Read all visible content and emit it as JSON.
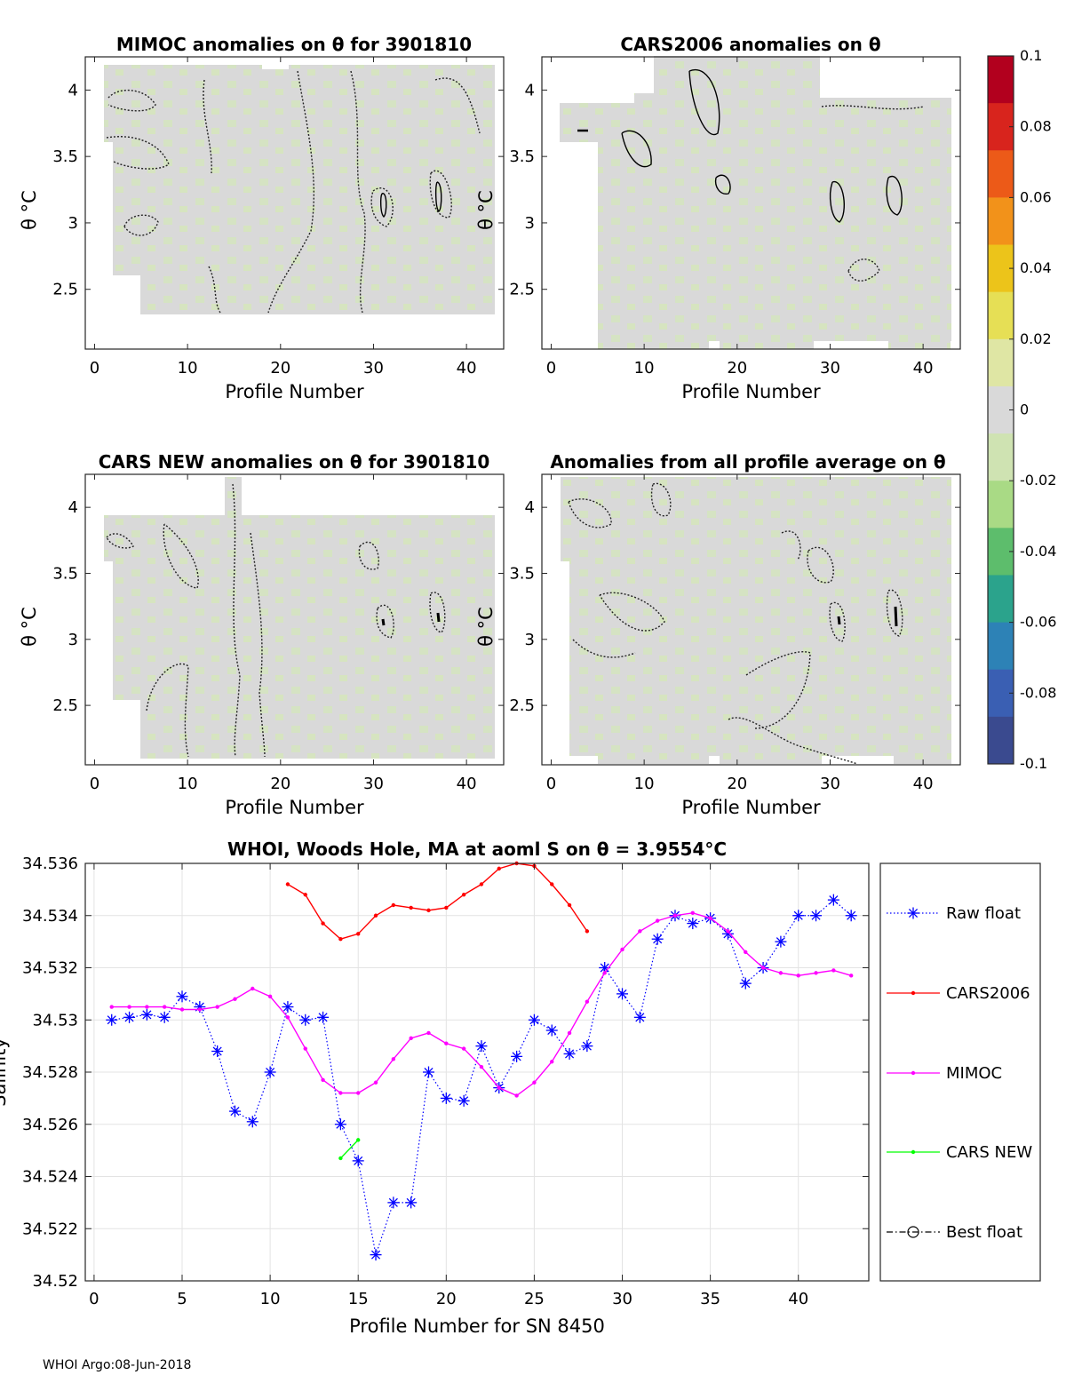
{
  "panels": [
    {
      "id": "mimoc",
      "title": "MIMOC anomalies on θ  for 3901810",
      "xlabel": "Profile Number",
      "ylabel": "θ °C"
    },
    {
      "id": "cars2006",
      "title": "CARS2006 anomalies on θ",
      "xlabel": "Profile Number",
      "ylabel": "θ °C"
    },
    {
      "id": "carsnew",
      "title": "CARS NEW anomalies on θ for 3901810",
      "xlabel": "Profile Number",
      "ylabel": "θ °C"
    },
    {
      "id": "allavg",
      "title": "Anomalies from all profile average on θ",
      "xlabel": "Profile Number",
      "ylabel": "θ °C"
    }
  ],
  "panel_axes": {
    "xlim": [
      -1,
      44
    ],
    "ylim": [
      2.05,
      4.25
    ],
    "xticks": [
      0,
      10,
      20,
      30,
      40
    ],
    "xtick_labels": [
      "0",
      "10",
      "20",
      "30",
      "40"
    ],
    "yticks": [
      2.5,
      3,
      3.5,
      4
    ],
    "ytick_labels": [
      "2.5",
      "3",
      "3.5",
      "4"
    ]
  },
  "colorbar": {
    "range": [
      -0.1,
      0.1
    ],
    "ticks": [
      0.1,
      0.08,
      0.06,
      0.04,
      0.02,
      0,
      -0.02,
      -0.04,
      -0.06,
      -0.08,
      -0.1
    ],
    "tick_labels": [
      "0.1",
      "0.08",
      "0.06",
      "0.04",
      "0.02",
      "0",
      "-0.02",
      "-0.04",
      "-0.06",
      "-0.08",
      "-0.1"
    ],
    "colors": [
      "#b2001e",
      "#d8241d",
      "#ec5a18",
      "#f2921a",
      "#ecc41a",
      "#e6df55",
      "#dfe6a4",
      "#d9d9d9",
      "#cfe3b2",
      "#a9da85",
      "#5dbd6c",
      "#2ba38c",
      "#2d82b6",
      "#3a5fb3",
      "#3a4a8f"
    ],
    "anomaly_fill": "#d9d9d9",
    "anomaly_tint": "#d5e6bd"
  },
  "chart_data": {
    "type": "line",
    "title": "WHOI, Woods Hole, MA at aoml S on θ = 3.9554°C",
    "xlabel": "Profile Number for SN 8450",
    "ylabel": "Salinity",
    "xlim": [
      -0.5,
      44
    ],
    "ylim": [
      34.52,
      34.536
    ],
    "xticks": [
      0,
      5,
      10,
      15,
      20,
      25,
      30,
      35,
      40
    ],
    "xtick_labels": [
      "0",
      "5",
      "10",
      "15",
      "20",
      "25",
      "30",
      "35",
      "40"
    ],
    "yticks": [
      34.52,
      34.522,
      34.524,
      34.526,
      34.528,
      34.53,
      34.532,
      34.534,
      34.536
    ],
    "ytick_labels": [
      "34.52",
      "34.522",
      "34.524",
      "34.526",
      "34.528",
      "34.53",
      "34.532",
      "34.534",
      "34.536"
    ],
    "grid": true,
    "legend": "right",
    "series": [
      {
        "name": "Raw float",
        "color": "#0000ff",
        "style": "dotted",
        "marker": "asterisk",
        "x": [
          1,
          2,
          3,
          4,
          5,
          6,
          7,
          8,
          9,
          10,
          11,
          12,
          13,
          14,
          15,
          16,
          17,
          18,
          19,
          20,
          21,
          22,
          23,
          24,
          25,
          26,
          27,
          28,
          29,
          30,
          31,
          32,
          33,
          34,
          35,
          36,
          37,
          38,
          39,
          40,
          41,
          42,
          43
        ],
        "y": [
          34.53,
          34.5301,
          34.5302,
          34.5301,
          34.5309,
          34.5305,
          34.5288,
          34.5265,
          34.5261,
          34.528,
          34.5305,
          34.53,
          34.5301,
          34.526,
          34.5246,
          34.521,
          34.523,
          34.523,
          34.528,
          34.527,
          34.5269,
          34.529,
          34.5274,
          34.5286,
          34.53,
          34.5296,
          34.5287,
          34.529,
          34.532,
          34.531,
          34.5301,
          34.5331,
          34.534,
          34.5337,
          34.5339,
          34.5333,
          34.5314,
          34.532,
          34.533,
          34.534,
          34.534,
          34.5346,
          34.534
        ]
      },
      {
        "name": "CARS2006",
        "color": "#ff0000",
        "style": "solid",
        "marker": "dot",
        "x": [
          11,
          12,
          13,
          14,
          15,
          16,
          17,
          18,
          19,
          20,
          21,
          22,
          23,
          24,
          25,
          26,
          27,
          28
        ],
        "y": [
          34.5352,
          34.5348,
          34.5337,
          34.5331,
          34.5333,
          34.534,
          34.5344,
          34.5343,
          34.5342,
          34.5343,
          34.5348,
          34.5352,
          34.5358,
          34.536,
          34.5359,
          34.5352,
          34.5344,
          34.5334
        ]
      },
      {
        "name": "MIMOC",
        "color": "#ff00ff",
        "style": "solid",
        "marker": "dot",
        "x": [
          1,
          2,
          3,
          4,
          5,
          6,
          7,
          8,
          9,
          10,
          11,
          12,
          13,
          14,
          15,
          16,
          17,
          18,
          19,
          20,
          21,
          22,
          23,
          24,
          25,
          26,
          27,
          28,
          29,
          30,
          31,
          32,
          33,
          34,
          35,
          36,
          37,
          38,
          39,
          40,
          41,
          42,
          43
        ],
        "y": [
          34.5305,
          34.5305,
          34.5305,
          34.5305,
          34.5304,
          34.5304,
          34.5305,
          34.5308,
          34.5312,
          34.5309,
          34.5301,
          34.5289,
          34.5277,
          34.5272,
          34.5272,
          34.5276,
          34.5285,
          34.5293,
          34.5295,
          34.5291,
          34.5289,
          34.5282,
          34.5274,
          34.5271,
          34.5276,
          34.5284,
          34.5295,
          34.5307,
          34.5318,
          34.5327,
          34.5334,
          34.5338,
          34.534,
          34.5341,
          34.5339,
          34.5334,
          34.5326,
          34.532,
          34.5318,
          34.5317,
          34.5318,
          34.5319,
          34.5317
        ]
      },
      {
        "name": "CARS NEW",
        "color": "#00ff00",
        "style": "solid",
        "marker": "dot",
        "x": [
          14,
          15
        ],
        "y": [
          34.5247,
          34.5254
        ]
      },
      {
        "name": "Best float",
        "color": "#000000",
        "style": "dashdot",
        "marker": "circle",
        "x": [],
        "y": []
      }
    ]
  },
  "footer": "WHOI Argo:08-Jun-2018"
}
